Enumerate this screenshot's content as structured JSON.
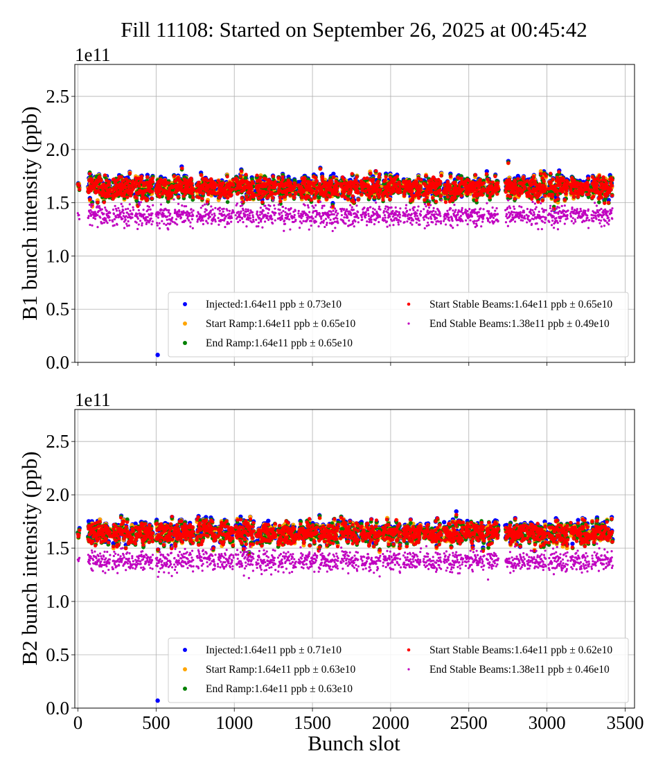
{
  "chart_data": {
    "title": "Fill 11108: Started on September 26, 2025 at 00:45:42",
    "type": "scatter",
    "xlabel": "Bunch slot",
    "xlim": [
      -20,
      3560
    ],
    "xticks": [
      "0",
      "500",
      "1000",
      "1500",
      "2000",
      "2500",
      "3000",
      "3500"
    ],
    "yticks": [
      "0.0",
      "0.5",
      "1.0",
      "1.5",
      "2.0",
      "2.5"
    ],
    "offset_text": "1e11",
    "grid": true,
    "legend_placement": "lower right",
    "panels": [
      {
        "ylabel": "B1 bunch intensity (ppb)",
        "ylim": [
          0,
          2.8
        ],
        "outlier": {
          "series": "Injected",
          "x": 510,
          "y": 0.07
        },
        "series": [
          {
            "name": "Injected",
            "legend": "Injected:1.64e11 ppb ± 0.73e10",
            "color": "#0000ff",
            "mean": 1.64,
            "std": 0.073
          },
          {
            "name": "Start Ramp",
            "legend": "Start Ramp:1.64e11 ppb ± 0.65e10",
            "color": "#ffa500",
            "mean": 1.64,
            "std": 0.065
          },
          {
            "name": "End Ramp",
            "legend": "End Ramp:1.64e11 ppb ± 0.65e10",
            "color": "#008000",
            "mean": 1.64,
            "std": 0.065
          },
          {
            "name": "Start Stable Beams",
            "legend": "Start Stable Beams:1.64e11 ppb ± 0.65e10",
            "color": "#ff0000",
            "mean": 1.64,
            "std": 0.065
          },
          {
            "name": "End Stable Beams",
            "legend": "End Stable Beams:1.38e11 ppb ± 0.49e10",
            "color": "#c000c0",
            "mean": 1.38,
            "std": 0.049
          }
        ]
      },
      {
        "ylabel": "B2 bunch intensity (ppb)",
        "ylim": [
          0,
          2.8
        ],
        "outlier": {
          "series": "Injected",
          "x": 510,
          "y": 0.07
        },
        "series": [
          {
            "name": "Injected",
            "legend": "Injected:1.64e11 ppb ± 0.71e10",
            "color": "#0000ff",
            "mean": 1.64,
            "std": 0.071
          },
          {
            "name": "Start Ramp",
            "legend": "Start Ramp:1.64e11 ppb ± 0.63e10",
            "color": "#ffa500",
            "mean": 1.64,
            "std": 0.063
          },
          {
            "name": "End Ramp",
            "legend": "End Ramp:1.64e11 ppb ± 0.63e10",
            "color": "#008000",
            "mean": 1.64,
            "std": 0.063
          },
          {
            "name": "Start Stable Beams",
            "legend": "Start Stable Beams:1.64e11 ppb ± 0.62e10",
            "color": "#ff0000",
            "mean": 1.64,
            "std": 0.062
          },
          {
            "name": "End Stable Beams",
            "legend": "End Stable Beams:1.38e11 ppb ± 0.46e10",
            "color": "#c000c0",
            "mean": 1.38,
            "std": 0.046
          }
        ]
      }
    ],
    "bunch_trains": [
      [
        0,
        10
      ],
      [
        65,
        205
      ],
      [
        220,
        355
      ],
      [
        365,
        480
      ],
      [
        500,
        605
      ],
      [
        615,
        740
      ],
      [
        760,
        880
      ],
      [
        895,
        995
      ],
      [
        1010,
        1125
      ],
      [
        1140,
        1265
      ],
      [
        1280,
        1395
      ],
      [
        1410,
        1530
      ],
      [
        1540,
        1665
      ],
      [
        1680,
        1795
      ],
      [
        1810,
        1935
      ],
      [
        1950,
        2065
      ],
      [
        2080,
        2195
      ],
      [
        2210,
        2325
      ],
      [
        2340,
        2465
      ],
      [
        2475,
        2600
      ],
      [
        2615,
        2690
      ],
      [
        2735,
        2860
      ],
      [
        2870,
        2995
      ],
      [
        3010,
        3135
      ],
      [
        3150,
        3270
      ],
      [
        3285,
        3420
      ]
    ]
  }
}
